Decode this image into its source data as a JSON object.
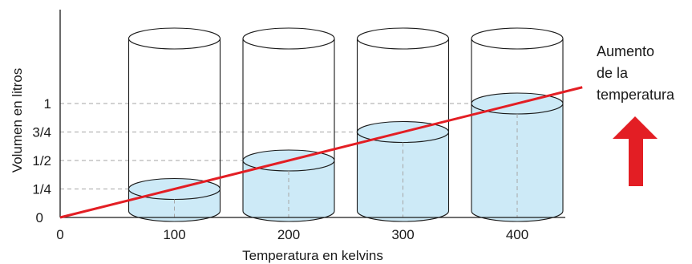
{
  "chart_data": {
    "type": "line",
    "xlabel": "Temperatura en kelvins",
    "ylabel": "Volumen en litros",
    "x_ticks": [
      "0",
      "100",
      "200",
      "300",
      "400"
    ],
    "y_ticks": [
      "0",
      "1/4",
      "1/2",
      "3/4",
      "1"
    ],
    "xlim": [
      0,
      450
    ],
    "ylim": [
      0,
      1
    ],
    "series": [
      {
        "x": [
          0,
          100,
          200,
          300,
          400
        ],
        "y": [
          0,
          0.25,
          0.5,
          0.75,
          1.0
        ]
      }
    ],
    "cylinders": [
      {
        "temperature": 100,
        "volume": 0.25
      },
      {
        "temperature": 200,
        "volume": 0.5
      },
      {
        "temperature": 300,
        "volume": 0.75
      },
      {
        "temperature": 400,
        "volume": 1.0
      }
    ],
    "annotation": {
      "lines": [
        "Aumento",
        "de la",
        "temperatura"
      ]
    },
    "colors": {
      "line": "#e31e24",
      "liquid": "#cdeaf7",
      "arrow": "#e31e24",
      "grid": "#a6a6a6",
      "outline": "#1a1a1a"
    },
    "grid": "dashed reference lines",
    "arrow_direction": "up"
  }
}
